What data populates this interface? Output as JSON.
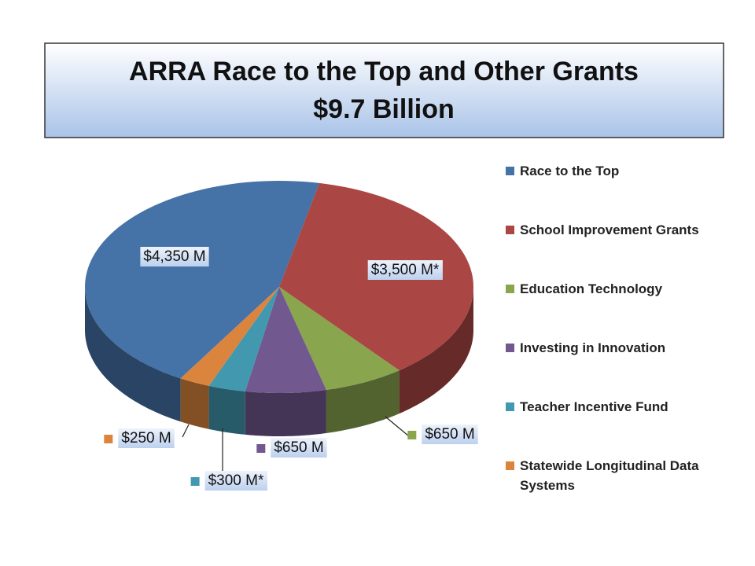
{
  "chart_data": {
    "type": "pie",
    "title": "ARRA Race to the Top and Other Grants",
    "subtitle": "$9.7 Billion",
    "categories": [
      "Race to the Top",
      "School Improvement Grants",
      "Education Technology",
      "Investing in Innovation",
      "Teacher Incentive Fund",
      "Statewide Longitudinal Data Systems"
    ],
    "values": [
      4350,
      3500,
      650,
      650,
      300,
      250
    ],
    "value_labels": [
      "$4,350 M",
      "$3,500 M*",
      "$650 M",
      "$650 M",
      "$300 M*",
      "$250 M"
    ],
    "colors": [
      "#4572a7",
      "#aa4643",
      "#89a54e",
      "#71588f",
      "#4198af",
      "#db843d"
    ],
    "legend": "right"
  }
}
